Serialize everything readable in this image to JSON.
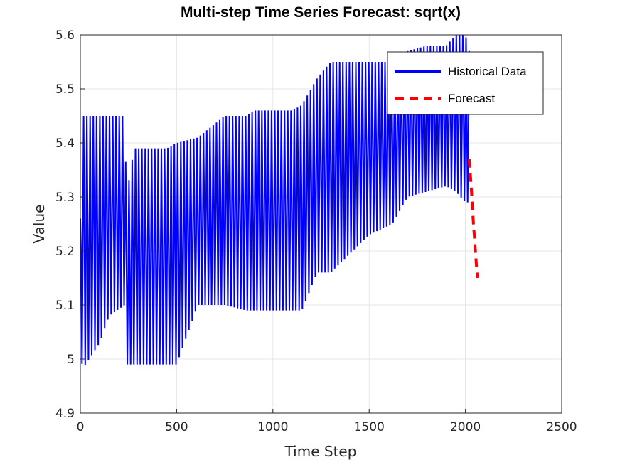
{
  "chart_data": {
    "type": "line",
    "title": "Multi-step Time Series Forecast: sqrt(x)",
    "xlabel": "Time Step",
    "ylabel": "Value",
    "xlim": [
      0,
      2500
    ],
    "ylim": [
      4.9,
      5.6
    ],
    "xticks": [
      0,
      500,
      1000,
      1500,
      2000,
      2500
    ],
    "xtick_labels": [
      "0",
      "500",
      "1000",
      "1500",
      "2000",
      "2500"
    ],
    "yticks": [
      4.9,
      5.0,
      5.1,
      5.2,
      5.3,
      5.4,
      5.5,
      5.6
    ],
    "ytick_labels": [
      "4.9",
      "5",
      "5.1",
      "5.2",
      "5.3",
      "5.4",
      "5.5",
      "5.6"
    ],
    "grid": true,
    "legend_position": "top-right",
    "series": [
      {
        "name": "Historical Data",
        "color": "#0000ff",
        "style": "solid",
        "note": "high-frequency oscillation between upper and lower envelopes",
        "envelope": [
          {
            "x": 0,
            "low": 5.05,
            "high": 5.26
          },
          {
            "x": 10,
            "low": 4.98,
            "high": 5.45
          },
          {
            "x": 100,
            "low": 5.03,
            "high": 5.45
          },
          {
            "x": 150,
            "low": 5.08,
            "high": 5.45
          },
          {
            "x": 230,
            "low": 5.1,
            "high": 5.45
          },
          {
            "x": 240,
            "low": 4.99,
            "high": 5.3
          },
          {
            "x": 260,
            "low": 4.99,
            "high": 5.35
          },
          {
            "x": 280,
            "low": 4.99,
            "high": 5.39
          },
          {
            "x": 450,
            "low": 4.99,
            "high": 5.39
          },
          {
            "x": 500,
            "low": 4.99,
            "high": 5.4
          },
          {
            "x": 610,
            "low": 5.1,
            "high": 5.41
          },
          {
            "x": 750,
            "low": 5.1,
            "high": 5.45
          },
          {
            "x": 860,
            "low": 5.09,
            "high": 5.45
          },
          {
            "x": 900,
            "low": 5.09,
            "high": 5.46
          },
          {
            "x": 1100,
            "low": 5.09,
            "high": 5.46
          },
          {
            "x": 1150,
            "low": 5.09,
            "high": 5.47
          },
          {
            "x": 1230,
            "low": 5.16,
            "high": 5.52
          },
          {
            "x": 1300,
            "low": 5.16,
            "high": 5.55
          },
          {
            "x": 1500,
            "low": 5.23,
            "high": 5.55
          },
          {
            "x": 1620,
            "low": 5.25,
            "high": 5.55
          },
          {
            "x": 1700,
            "low": 5.3,
            "high": 5.57
          },
          {
            "x": 1800,
            "low": 5.31,
            "high": 5.58
          },
          {
            "x": 1900,
            "low": 5.32,
            "high": 5.58
          },
          {
            "x": 1950,
            "low": 5.31,
            "high": 5.6
          },
          {
            "x": 2000,
            "low": 5.29,
            "high": 5.6
          },
          {
            "x": 2020,
            "low": 5.29,
            "high": 5.57
          }
        ]
      },
      {
        "name": "Forecast",
        "color": "#ff0000",
        "style": "dashed",
        "x": [
          2020,
          2030,
          2040,
          2050,
          2062
        ],
        "y": [
          5.37,
          5.32,
          5.26,
          5.21,
          5.15
        ]
      }
    ]
  }
}
